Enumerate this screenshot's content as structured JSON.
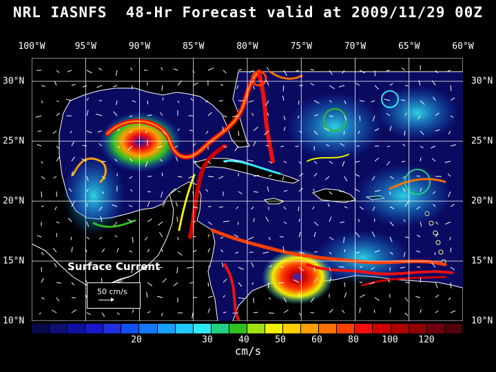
{
  "title": "NRL IASNFS  48-Hr Forecast valid at 2009/11/29 00Z",
  "longitudes": [
    "100°W",
    "95°W",
    "90°W",
    "85°W",
    "80°W",
    "75°W",
    "70°W",
    "65°W",
    "60°W"
  ],
  "latitudes": [
    "30°N",
    "25°N",
    "20°N",
    "15°N",
    "10°N"
  ],
  "map_label": "Surface Current",
  "vector_legend": "50 cm/s",
  "colorbar": {
    "ticks": [
      "20",
      "30",
      "40",
      "50",
      "60",
      "80",
      "100",
      "120"
    ],
    "units": "cm/s",
    "colors": [
      "#0a0a4a",
      "#101070",
      "#1010a0",
      "#1818c8",
      "#2030e0",
      "#1050f0",
      "#1478f8",
      "#18a0ff",
      "#20c8ff",
      "#30e8f0",
      "#20d080",
      "#30c020",
      "#a0e010",
      "#f0f000",
      "#ffd000",
      "#ffa000",
      "#ff7000",
      "#ff4000",
      "#f01010",
      "#d00000",
      "#b00000",
      "#900000",
      "#700010",
      "#500008"
    ]
  },
  "colors": {
    "land": "#000000",
    "ocean_low": "#0a0a60",
    "coast": "#ffffff",
    "grid": "#ffffff"
  }
}
